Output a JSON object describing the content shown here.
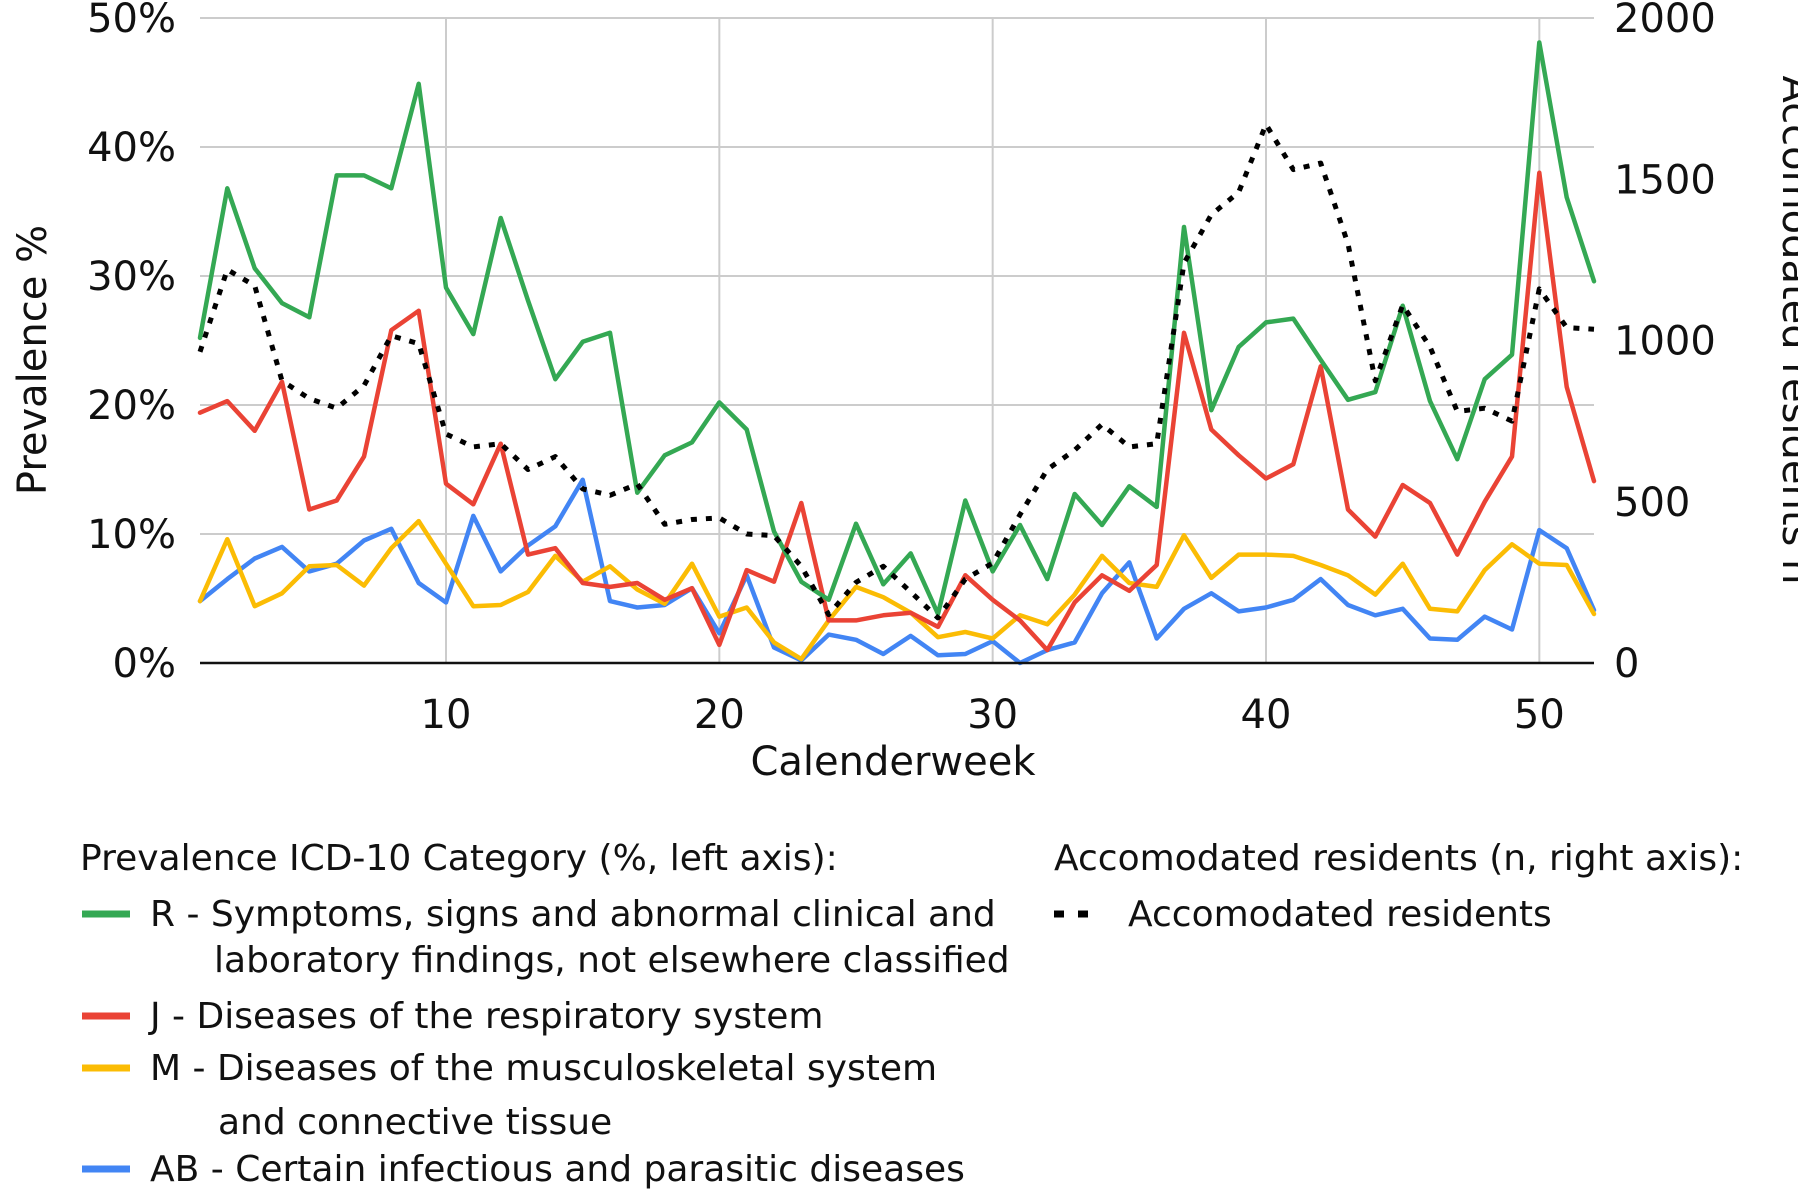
{
  "chart_data": {
    "type": "line",
    "xlabel": "Calenderweek",
    "ylabel": "Prevalence %",
    "y2label": "Accomodated residents n",
    "xlim": [
      1,
      52
    ],
    "ylim": [
      0,
      50
    ],
    "y2lim": [
      0,
      2000
    ],
    "x_ticks": [
      10,
      20,
      30,
      40,
      50
    ],
    "y_ticks": [
      0,
      10,
      20,
      30,
      40,
      50
    ],
    "y_tick_labels": [
      "0%",
      "10%",
      "20%",
      "30%",
      "40%",
      "50%"
    ],
    "y2_ticks": [
      0,
      500,
      1000,
      1500,
      2000
    ],
    "y2_tick_labels": [
      "0",
      "500",
      "1000",
      "1500",
      "2000"
    ],
    "grid": true,
    "x": [
      1,
      2,
      3,
      4,
      5,
      6,
      7,
      8,
      9,
      10,
      11,
      12,
      13,
      14,
      15,
      16,
      17,
      18,
      19,
      20,
      21,
      22,
      23,
      24,
      25,
      26,
      27,
      28,
      29,
      30,
      31,
      32,
      33,
      34,
      35,
      36,
      37,
      38,
      39,
      40,
      41,
      42,
      43,
      44,
      45,
      46,
      47,
      48,
      49,
      50,
      51,
      52
    ],
    "series": [
      {
        "key": "R",
        "color": "#34a853",
        "axis": "left",
        "values": [
          25.2,
          36.8,
          30.6,
          27.9,
          26.8,
          37.8,
          37.8,
          36.8,
          44.9,
          29.1,
          25.5,
          34.5,
          28.1,
          22.0,
          24.9,
          25.6,
          13.2,
          16.1,
          17.1,
          20.2,
          18.1,
          10.2,
          6.3,
          4.9,
          10.8,
          6.1,
          8.5,
          3.8,
          12.6,
          7.1,
          10.7,
          6.5,
          13.1,
          10.7,
          13.7,
          12.1,
          33.8,
          19.6,
          24.5,
          26.4,
          26.7,
          23.5,
          20.4,
          21.0,
          27.7,
          20.3,
          15.8,
          22.0,
          23.9,
          48.1,
          36.1,
          29.6
        ]
      },
      {
        "key": "J",
        "color": "#ea4335",
        "axis": "left",
        "values": [
          19.4,
          20.3,
          18.0,
          21.8,
          11.9,
          12.6,
          16.0,
          25.8,
          27.3,
          13.9,
          12.3,
          17.0,
          8.4,
          8.9,
          6.2,
          5.9,
          6.2,
          4.9,
          5.8,
          1.4,
          7.2,
          6.3,
          12.4,
          3.3,
          3.3,
          3.7,
          3.9,
          2.8,
          6.8,
          4.9,
          3.3,
          1.0,
          4.7,
          6.8,
          5.6,
          7.6,
          25.6,
          18.1,
          16.1,
          14.3,
          15.4,
          23.0,
          11.9,
          9.8,
          13.8,
          12.4,
          8.4,
          12.5,
          16.0,
          38.0,
          21.4,
          14.1
        ]
      },
      {
        "key": "M",
        "color": "#fbbc04",
        "axis": "left",
        "values": [
          4.8,
          9.6,
          4.4,
          5.4,
          7.5,
          7.6,
          6.0,
          8.9,
          11.0,
          7.7,
          4.4,
          4.5,
          5.5,
          8.3,
          6.3,
          7.5,
          5.7,
          4.6,
          7.7,
          3.6,
          4.3,
          1.6,
          0.3,
          3.3,
          5.9,
          5.1,
          3.9,
          2.0,
          2.4,
          1.9,
          3.7,
          3.0,
          5.3,
          8.3,
          6.2,
          5.9,
          9.9,
          6.6,
          8.4,
          8.4,
          8.3,
          7.6,
          6.8,
          5.3,
          7.7,
          4.2,
          4.0,
          7.2,
          9.2,
          7.7,
          7.6,
          3.8
        ]
      },
      {
        "key": "AB",
        "color": "#4285f4",
        "axis": "left",
        "values": [
          4.8,
          6.5,
          8.1,
          9.0,
          7.1,
          7.7,
          9.5,
          10.4,
          6.2,
          4.7,
          11.4,
          7.1,
          9.1,
          10.6,
          14.2,
          4.8,
          4.3,
          4.5,
          5.8,
          2.3,
          6.8,
          1.2,
          0.2,
          2.2,
          1.8,
          0.7,
          2.1,
          0.6,
          0.7,
          1.7,
          0.0,
          1.0,
          1.6,
          5.4,
          7.8,
          1.9,
          4.2,
          5.4,
          4.0,
          4.3,
          4.9,
          6.5,
          4.5,
          3.7,
          4.2,
          1.9,
          1.8,
          3.6,
          2.6,
          10.3,
          8.9,
          4.1
        ]
      },
      {
        "key": "residents",
        "color": "#000000",
        "axis": "right",
        "dashed": true,
        "values": [
          965,
          1220,
          1170,
          875,
          820,
          790,
          860,
          1015,
          990,
          710,
          670,
          680,
          600,
          640,
          540,
          520,
          555,
          430,
          445,
          450,
          400,
          395,
          300,
          150,
          250,
          300,
          220,
          140,
          260,
          310,
          460,
          600,
          660,
          740,
          670,
          680,
          1240,
          1390,
          1460,
          1670,
          1530,
          1550,
          1300,
          875,
          1110,
          980,
          780,
          790,
          750,
          1160,
          1040,
          1035
        ]
      }
    ],
    "legend": {
      "left_title": "Prevalence ICD-10 Category (%, left axis):",
      "right_title": "Accomodated residents (n, right axis):",
      "entries": [
        {
          "key": "R",
          "lines": [
            "R - Symptoms, signs and abnormal clinical and",
            "laboratory findings, not elsewhere classified"
          ]
        },
        {
          "key": "J",
          "lines": [
            "J - Diseases of the respiratory system"
          ]
        },
        {
          "key": "M",
          "lines": [
            "M - Diseases of the musculoskeletal system",
            "and connective tissue"
          ]
        },
        {
          "key": "AB",
          "lines": [
            "AB - Certain infectious and parasitic diseases"
          ]
        },
        {
          "key": "residents",
          "lines": [
            "Accomodated residents"
          ]
        }
      ]
    }
  }
}
